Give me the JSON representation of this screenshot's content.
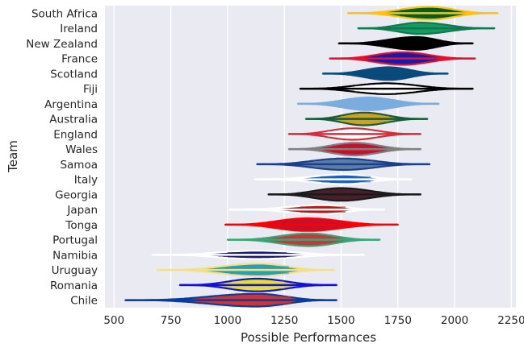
{
  "chart_data": {
    "type": "violin",
    "xlabel": "Possible Performances",
    "ylabel": "Team",
    "xlim": [
      460,
      2270
    ],
    "x_ticks": [
      500,
      750,
      1000,
      1250,
      1500,
      1750,
      2000,
      2250
    ],
    "x_tick_labels": [
      "500",
      "750",
      "1000",
      "1250",
      "1500",
      "1750",
      "2000",
      "2250"
    ],
    "grid": true,
    "background": "#eaeaf2",
    "series": [
      {
        "team": "South Africa",
        "min": 1530,
        "median": 1890,
        "max": 2190,
        "q1": 1760,
        "q3": 1990,
        "width": 1.0,
        "fill": "#0b5d1e",
        "line": "#ffc20e"
      },
      {
        "team": "Ireland",
        "min": 1575,
        "median": 1850,
        "max": 2175,
        "q1": 1720,
        "q3": 1960,
        "width": 0.9,
        "fill": "#169b62",
        "line": "#0f7a4d"
      },
      {
        "team": "New Zealand",
        "min": 1490,
        "median": 1830,
        "max": 2080,
        "q1": 1700,
        "q3": 1930,
        "width": 1.0,
        "fill": "#000000",
        "line": "#000000"
      },
      {
        "team": "France",
        "min": 1450,
        "median": 1770,
        "max": 2090,
        "q1": 1640,
        "q3": 1880,
        "width": 1.0,
        "fill": "#1a1aa6",
        "line": "#e8102e"
      },
      {
        "team": "Scotland",
        "min": 1420,
        "median": 1710,
        "max": 1970,
        "q1": 1590,
        "q3": 1820,
        "width": 1.0,
        "fill": "#0b4a7a",
        "line": "#0b4a7a"
      },
      {
        "team": "Fiji",
        "min": 1320,
        "median": 1700,
        "max": 2080,
        "q1": 1560,
        "q3": 1830,
        "width": 0.85,
        "fill": "#ffffff",
        "line": "#000000"
      },
      {
        "team": "Argentina",
        "min": 1310,
        "median": 1620,
        "max": 1930,
        "q1": 1480,
        "q3": 1720,
        "width": 1.0,
        "fill": "#7aaddd",
        "line": "#7aaddd"
      },
      {
        "team": "Australia",
        "min": 1345,
        "median": 1600,
        "max": 1880,
        "q1": 1500,
        "q3": 1710,
        "width": 1.0,
        "fill": "#d4a017",
        "line": "#1a5a3a"
      },
      {
        "team": "England",
        "min": 1270,
        "median": 1550,
        "max": 1850,
        "q1": 1440,
        "q3": 1660,
        "width": 0.9,
        "fill": "#ffffff",
        "line": "#d2303c"
      },
      {
        "team": "Wales",
        "min": 1270,
        "median": 1560,
        "max": 1850,
        "q1": 1460,
        "q3": 1650,
        "width": 1.0,
        "fill": "#c8102e",
        "line": "#808080"
      },
      {
        "team": "Samoa",
        "min": 1130,
        "median": 1510,
        "max": 1890,
        "q1": 1380,
        "q3": 1640,
        "width": 0.9,
        "fill": "#5a7fa8",
        "line": "#1e3f8a"
      },
      {
        "team": "Italy",
        "min": 1120,
        "median": 1520,
        "max": 1810,
        "q1": 1410,
        "q3": 1630,
        "width": 0.75,
        "fill": "#1f5fb5",
        "line": "#ffffff"
      },
      {
        "team": "Georgia",
        "min": 1180,
        "median": 1500,
        "max": 1850,
        "q1": 1390,
        "q3": 1620,
        "width": 1.0,
        "fill": "#4a1f2a",
        "line": "#1a1a1a"
      },
      {
        "team": "Japan",
        "min": 1010,
        "median": 1420,
        "max": 1690,
        "q1": 1320,
        "q3": 1520,
        "width": 0.7,
        "fill": "#b31b1b",
        "line": "#ffffff"
      },
      {
        "team": "Tonga",
        "min": 990,
        "median": 1350,
        "max": 1750,
        "q1": 1230,
        "q3": 1470,
        "width": 1.0,
        "fill": "#c8102e",
        "line": "#ff0000"
      },
      {
        "team": "Portugal",
        "min": 1000,
        "median": 1360,
        "max": 1670,
        "q1": 1250,
        "q3": 1460,
        "width": 1.0,
        "fill": "#c8383a",
        "line": "#3aa676"
      },
      {
        "team": "Namibia",
        "min": 670,
        "median": 1130,
        "max": 1600,
        "q1": 1000,
        "q3": 1260,
        "width": 0.65,
        "fill": "#1a1a6e",
        "line": "#ffffff"
      },
      {
        "team": "Uruguay",
        "min": 690,
        "median": 1140,
        "max": 1470,
        "q1": 1010,
        "q3": 1270,
        "width": 1.0,
        "fill": "#28a0b4",
        "line": "#f5e08a"
      },
      {
        "team": "Romania",
        "min": 790,
        "median": 1130,
        "max": 1480,
        "q1": 1020,
        "q3": 1250,
        "width": 1.0,
        "fill": "#e6e020",
        "line": "#1010d8"
      },
      {
        "team": "Chile",
        "min": 550,
        "median": 1130,
        "max": 1480,
        "q1": 960,
        "q3": 1280,
        "width": 1.0,
        "fill": "#c8383a",
        "line": "#0b3aa0"
      }
    ]
  }
}
